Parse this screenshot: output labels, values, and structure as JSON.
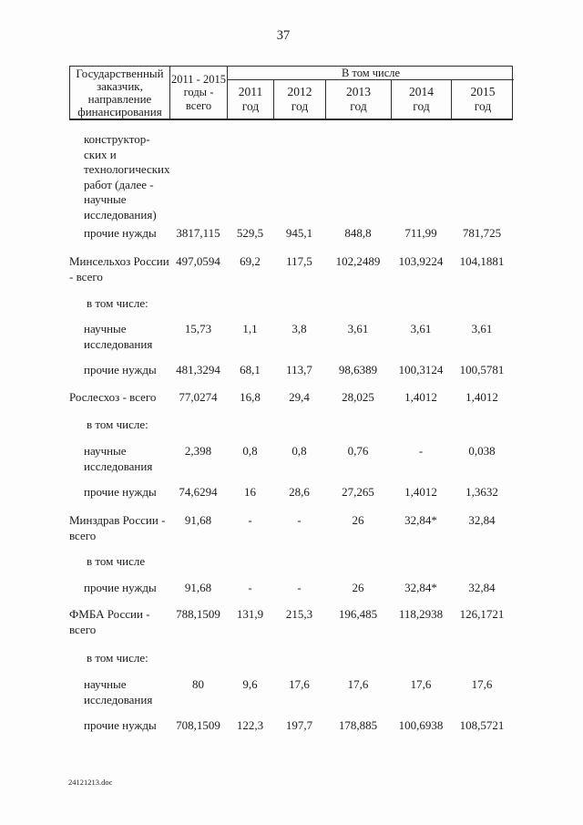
{
  "page_number": "37",
  "footer": {
    "filename": "24121213.doc"
  },
  "table": {
    "header": {
      "customer_col": "Государственный заказчик, направление финансирования",
      "total_col": "2011 - 2015 годы - всего",
      "including_col": "В том числе",
      "year_cols": [
        "2011 год",
        "2012 год",
        "2013 год",
        "2014 год",
        "2015 год"
      ]
    },
    "rows": [
      {
        "label": "конструктор-ских и технологических работ (далее - научные исследования)",
        "indent": 1,
        "values": [
          "",
          "",
          "",
          "",
          "",
          ""
        ]
      },
      {
        "label": "прочие нужды",
        "indent": 1,
        "values": [
          "3817,115",
          "529,5",
          "945,1",
          "848,8",
          "711,99",
          "781,725"
        ]
      },
      {
        "label": "Минсельхоз России - всего",
        "indent": 0,
        "values": [
          "497,0594",
          "69,2",
          "117,5",
          "102,2489",
          "103,9224",
          "104,1881"
        ]
      },
      {
        "label": "в том числе:",
        "indent": 2,
        "values": [
          "",
          "",
          "",
          "",
          "",
          ""
        ]
      },
      {
        "label": "научные исследования",
        "indent": 1,
        "values": [
          "15,73",
          "1,1",
          "3,8",
          "3,61",
          "3,61",
          "3,61"
        ]
      },
      {
        "label": "прочие нужды",
        "indent": 1,
        "values": [
          "481,3294",
          "68,1",
          "113,7",
          "98,6389",
          "100,3124",
          "100,5781"
        ]
      },
      {
        "label": "Рослесхоз - всего",
        "indent": 0,
        "values": [
          "77,0274",
          "16,8",
          "29,4",
          "28,025",
          "1,4012",
          "1,4012"
        ]
      },
      {
        "label": "в том числе:",
        "indent": 2,
        "values": [
          "",
          "",
          "",
          "",
          "",
          ""
        ]
      },
      {
        "label": "научные исследования",
        "indent": 1,
        "values": [
          "2,398",
          "0,8",
          "0,8",
          "0,76",
          "-",
          "0,038"
        ]
      },
      {
        "label": "прочие нужды",
        "indent": 1,
        "values": [
          "74,6294",
          "16",
          "28,6",
          "27,265",
          "1,4012",
          "1,3632"
        ]
      },
      {
        "label": "Минздрав России - всего",
        "indent": 0,
        "values": [
          "91,68",
          "-",
          "-",
          "26",
          "32,84*",
          "32,84"
        ]
      },
      {
        "label": "в том числе",
        "indent": 2,
        "values": [
          "",
          "",
          "",
          "",
          "",
          ""
        ]
      },
      {
        "label": "прочие нужды",
        "indent": 1,
        "values": [
          "91,68",
          "-",
          "-",
          "26",
          "32,84*",
          "32,84"
        ]
      },
      {
        "label": "ФМБА России - всего",
        "indent": 0,
        "values": [
          "788,1509",
          "131,9",
          "215,3",
          "196,485",
          "118,2938",
          "126,1721"
        ]
      },
      {
        "label": "в том числе:",
        "indent": 2,
        "values": [
          "",
          "",
          "",
          "",
          "",
          ""
        ]
      },
      {
        "label": "научные исследования",
        "indent": 1,
        "values": [
          "80",
          "9,6",
          "17,6",
          "17,6",
          "17,6",
          "17,6"
        ]
      },
      {
        "label": "прочие нужды",
        "indent": 1,
        "values": [
          "708,1509",
          "122,3",
          "197,7",
          "178,885",
          "100,6938",
          "108,5721"
        ]
      }
    ]
  }
}
